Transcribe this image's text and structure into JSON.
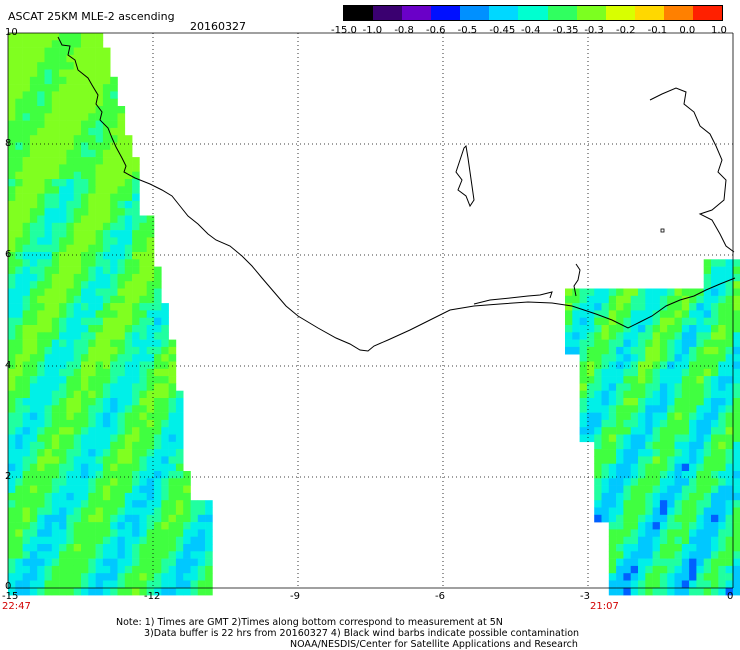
{
  "header": {
    "title": "ASCAT 25KM MLE-2 ascending",
    "date": "20160327"
  },
  "colorbar": {
    "labels": [
      "-15.0",
      "-1.0",
      "-0.8",
      "-0.6",
      "-0.5",
      "-0.45",
      "-0.4",
      "-0.35",
      "-0.3",
      "-0.2",
      "-0.1",
      "0.0",
      "1.0"
    ],
    "colors": [
      "#000000",
      "#3a0070",
      "#6a00c8",
      "#0010ff",
      "#0090ff",
      "#00d8ff",
      "#00ffd0",
      "#30ff60",
      "#7cff20",
      "#d8ff00",
      "#ffd800",
      "#ff8000",
      "#ff2000"
    ]
  },
  "axes": {
    "x_ticks": [
      "-15",
      "-12",
      "-9",
      "-6",
      "-3",
      "0"
    ],
    "y_ticks": [
      "10",
      "8",
      "6",
      "4",
      "2",
      "0"
    ],
    "x_range": [
      -15,
      0
    ],
    "y_range": [
      0,
      10
    ],
    "grid": "dotted"
  },
  "swath_times": {
    "left": "22:47",
    "right": "21:07"
  },
  "notes": {
    "line1": "Note: 1) Times are GMT 2)Times along bottom correspond to measurement at 5N",
    "line2": "3)Data buffer is 22 hrs from 20160327 4) Black wind barbs indicate possible contamination",
    "line3": "NOAA/NESDIS/Center for Satellite Applications and Research"
  }
}
